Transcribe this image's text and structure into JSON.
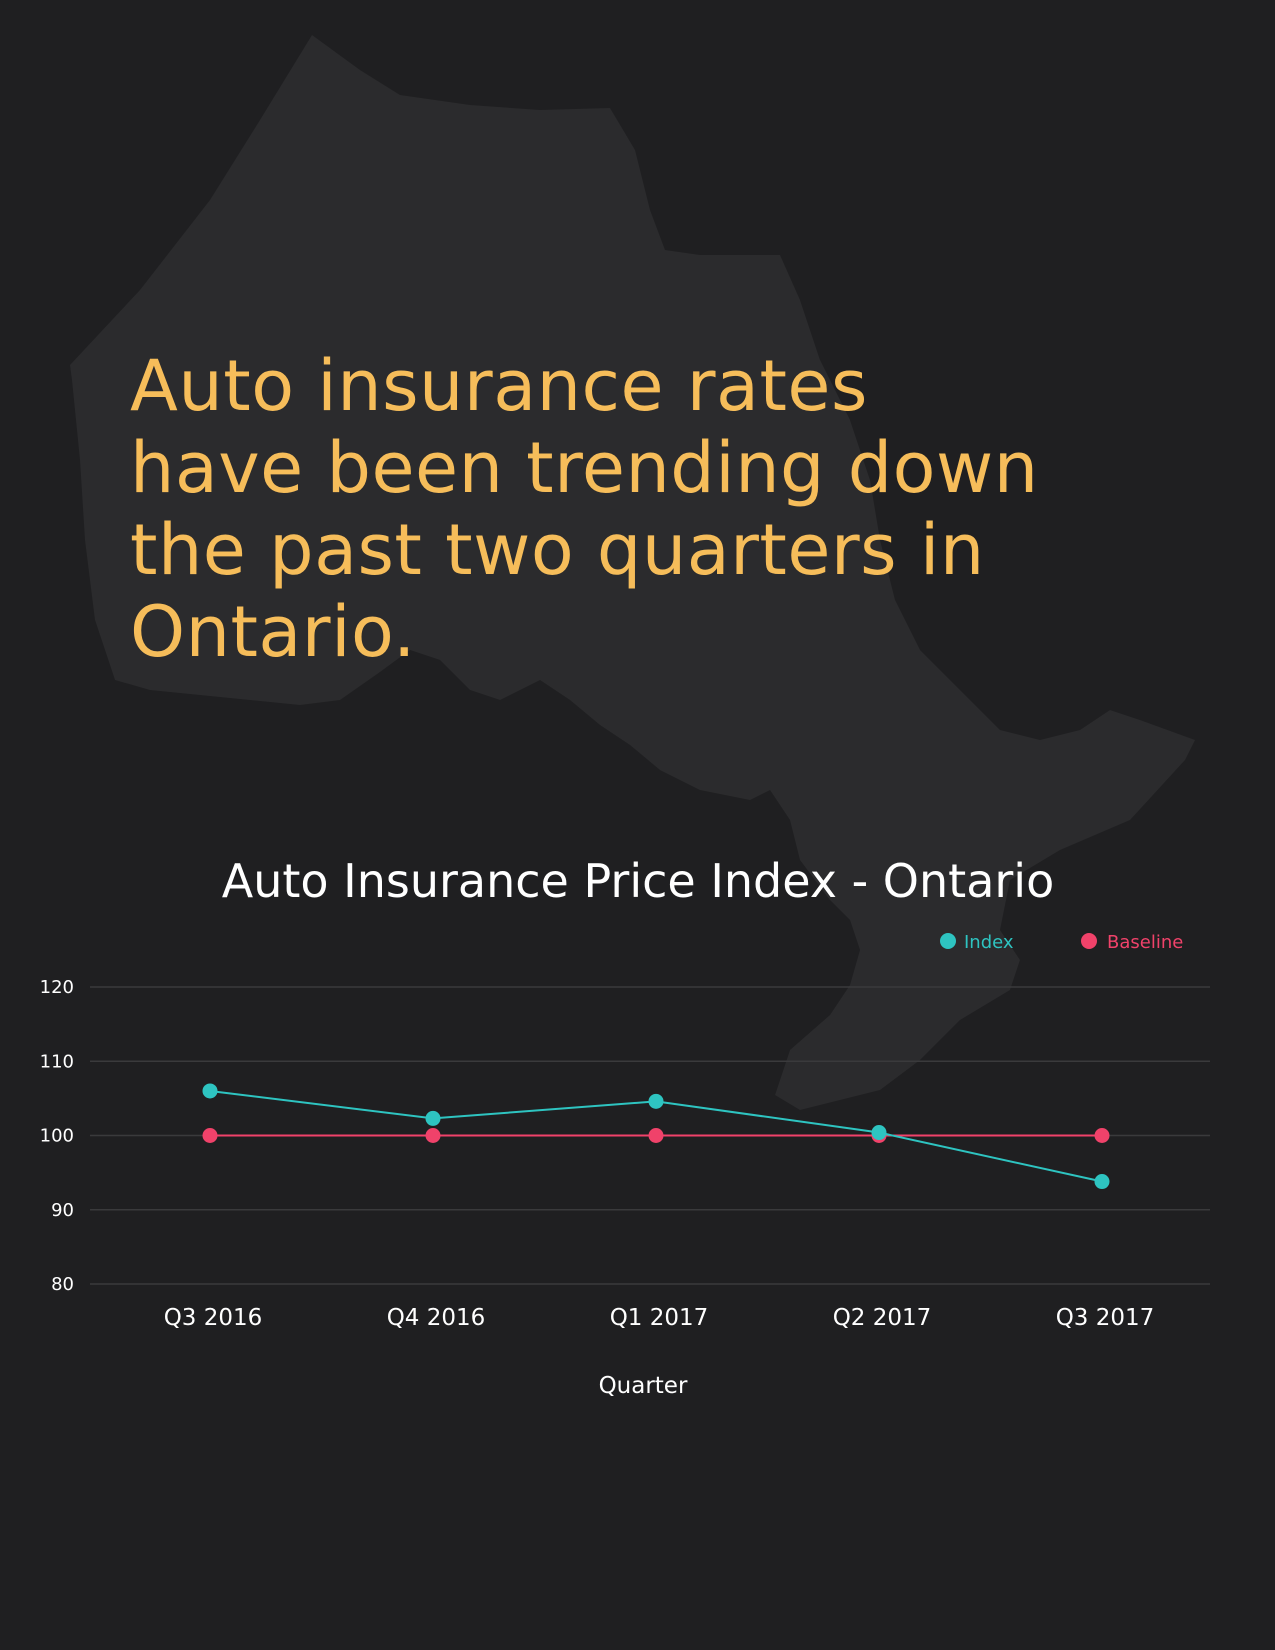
{
  "headline": {
    "lines": [
      "Auto insurance rates",
      "have been trending down",
      "the past two quarters in",
      "Ontario."
    ]
  },
  "colors": {
    "background": "#1f1f21",
    "map": "#2b2b2d",
    "headline": "#f6bd5a",
    "index": "#2ec4c1",
    "baseline": "#f0426a",
    "grid": "#3a3a3c",
    "text": "#ffffff"
  },
  "chart_data": {
    "type": "line",
    "title": "Auto Insurance Price Index - Ontario",
    "xlabel": "Quarter",
    "ylabel": "",
    "categories": [
      "Q3 2016",
      "Q4 2016",
      "Q1 2017",
      "Q2 2017",
      "Q3 2017"
    ],
    "ylim": [
      80,
      120
    ],
    "yticks": [
      "120",
      "110",
      "100",
      "90",
      "80"
    ],
    "grid": true,
    "legend_position": "top-right",
    "series": [
      {
        "name": "Index",
        "values": [
          106,
          102.3,
          104.6,
          100.4,
          93.8
        ],
        "color": "#2ec4c1"
      },
      {
        "name": "Baseline",
        "values": [
          100,
          100,
          100,
          100,
          100
        ],
        "color": "#f0426a"
      }
    ]
  }
}
